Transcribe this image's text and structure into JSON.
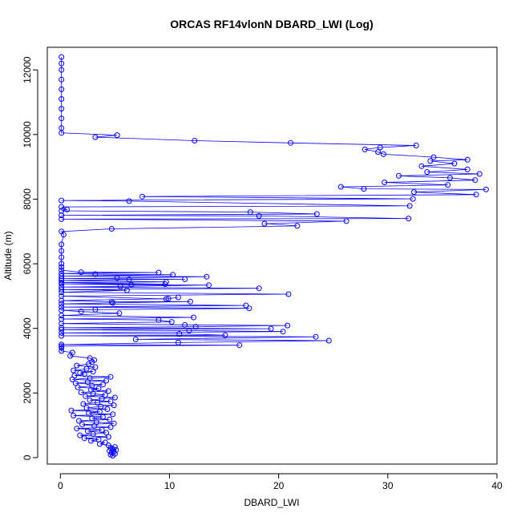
{
  "chart_data": {
    "type": "scatter",
    "title": "ORCAS RF14vlonN DBARD_LWI (Log)",
    "xlabel": "DBARD_LWI",
    "ylabel": "Altitude (m)",
    "xlim": [
      -1.2,
      40.0
    ],
    "ylim": [
      -200,
      12700
    ],
    "x_ticks": [
      0,
      10,
      20,
      30,
      40
    ],
    "y_ticks": [
      0,
      2000,
      4000,
      6000,
      8000,
      10000,
      12000
    ],
    "grid": false,
    "legend": "none",
    "series": [
      {
        "style": "points-connected-by-lines",
        "color": "#0000ff",
        "points": [
          [
            4.8,
            60
          ],
          [
            4.6,
            90
          ],
          [
            5.0,
            120
          ],
          [
            4.7,
            150
          ],
          [
            4.9,
            180
          ],
          [
            4.5,
            210
          ],
          [
            5.1,
            240
          ],
          [
            4.8,
            270
          ],
          [
            4.6,
            300
          ],
          [
            5.0,
            330
          ],
          [
            4.4,
            380
          ],
          [
            3.6,
            420
          ],
          [
            4.1,
            470
          ],
          [
            2.8,
            520
          ],
          [
            3.5,
            560
          ],
          [
            2.2,
            600
          ],
          [
            4.4,
            640
          ],
          [
            1.8,
            690
          ],
          [
            3.0,
            730
          ],
          [
            4.2,
            770
          ],
          [
            2.5,
            820
          ],
          [
            3.8,
            860
          ],
          [
            1.5,
            900
          ],
          [
            4.6,
            940
          ],
          [
            3.1,
            980
          ],
          [
            2.0,
            1020
          ],
          [
            4.9,
            1060
          ],
          [
            3.3,
            1100
          ],
          [
            1.7,
            1140
          ],
          [
            4.5,
            1180
          ],
          [
            2.9,
            1220
          ],
          [
            3.9,
            1260
          ],
          [
            1.2,
            1300
          ],
          [
            4.8,
            1340
          ],
          [
            2.6,
            1380
          ],
          [
            3.6,
            1420
          ],
          [
            1.0,
            1460
          ],
          [
            4.3,
            1500
          ],
          [
            2.4,
            1540
          ],
          [
            3.7,
            1580
          ],
          [
            4.9,
            1620
          ],
          [
            2.1,
            1660
          ],
          [
            3.4,
            1700
          ],
          [
            4.6,
            1740
          ],
          [
            2.7,
            1780
          ],
          [
            3.8,
            1820
          ],
          [
            5.0,
            1860
          ],
          [
            2.3,
            1900
          ],
          [
            4.1,
            1940
          ],
          [
            3.0,
            1980
          ],
          [
            1.9,
            2020
          ],
          [
            4.4,
            2060
          ],
          [
            2.8,
            2100
          ],
          [
            3.5,
            2140
          ],
          [
            1.6,
            2180
          ],
          [
            2.9,
            2220
          ],
          [
            3.9,
            2260
          ],
          [
            1.4,
            2300
          ],
          [
            2.5,
            2340
          ],
          [
            4.2,
            2380
          ],
          [
            1.1,
            2420
          ],
          [
            2.7,
            2460
          ],
          [
            4.6,
            2500
          ],
          [
            1.3,
            2540
          ],
          [
            2.2,
            2580
          ],
          [
            1.8,
            2620
          ],
          [
            3.0,
            2660
          ],
          [
            1.2,
            2700
          ],
          [
            2.4,
            2750
          ],
          [
            3.2,
            2800
          ],
          [
            1.5,
            2850
          ],
          [
            2.6,
            2900
          ],
          [
            2.9,
            2960
          ],
          [
            3.1,
            3020
          ],
          [
            2.7,
            3080
          ],
          [
            0.9,
            3150
          ],
          [
            1.1,
            3250
          ],
          [
            0.1,
            3300
          ],
          [
            0.1,
            3400
          ],
          [
            0.1,
            3450
          ],
          [
            16.4,
            3480
          ],
          [
            0.1,
            3500
          ],
          [
            10.8,
            3560
          ],
          [
            24.6,
            3620
          ],
          [
            6.9,
            3660
          ],
          [
            23.4,
            3740
          ],
          [
            0.1,
            3770
          ],
          [
            15.1,
            3790
          ],
          [
            10.9,
            3830
          ],
          [
            0.1,
            3860
          ],
          [
            20.4,
            3900
          ],
          [
            11.8,
            3930
          ],
          [
            0.1,
            3960
          ],
          [
            19.3,
            3990
          ],
          [
            0.1,
            4020
          ],
          [
            12.4,
            4050
          ],
          [
            20.8,
            4090
          ],
          [
            11.4,
            4110
          ],
          [
            0.1,
            4150
          ],
          [
            10.2,
            4200
          ],
          [
            9.0,
            4260
          ],
          [
            0.1,
            4290
          ],
          [
            12.2,
            4340
          ],
          [
            0.1,
            4400
          ],
          [
            5.4,
            4470
          ],
          [
            1.9,
            4520
          ],
          [
            0.1,
            4560
          ],
          [
            3.2,
            4580
          ],
          [
            17.3,
            4620
          ],
          [
            0.1,
            4660
          ],
          [
            17.0,
            4710
          ],
          [
            0.1,
            4760
          ],
          [
            4.8,
            4790
          ],
          [
            11.9,
            4830
          ],
          [
            4.7,
            4820
          ],
          [
            0.1,
            4860
          ],
          [
            9.9,
            4920
          ],
          [
            10.8,
            4960
          ],
          [
            9.7,
            4910
          ],
          [
            0.1,
            5000
          ],
          [
            20.9,
            5060
          ],
          [
            0.1,
            5120
          ],
          [
            6.1,
            5180
          ],
          [
            0.1,
            5200
          ],
          [
            18.2,
            5240
          ],
          [
            0.1,
            5280
          ],
          [
            5.5,
            5300
          ],
          [
            13.6,
            5340
          ],
          [
            6.5,
            5350
          ],
          [
            0.1,
            5380
          ],
          [
            9.6,
            5370
          ],
          [
            0.1,
            5420
          ],
          [
            9.7,
            5440
          ],
          [
            0.1,
            5480
          ],
          [
            6.3,
            5510
          ],
          [
            11.4,
            5520
          ],
          [
            0.1,
            5540
          ],
          [
            5.2,
            5560
          ],
          [
            13.4,
            5600
          ],
          [
            0.1,
            5620
          ],
          [
            10.3,
            5660
          ],
          [
            3.2,
            5680
          ],
          [
            0.1,
            5700
          ],
          [
            9.0,
            5730
          ],
          [
            1.9,
            5740
          ],
          [
            0.1,
            5800
          ],
          [
            0.1,
            5900
          ],
          [
            0.1,
            6000
          ],
          [
            0.1,
            6200
          ],
          [
            0.1,
            6400
          ],
          [
            0.1,
            6600
          ],
          [
            0.3,
            6900
          ],
          [
            0.1,
            7000
          ],
          [
            4.7,
            7080
          ],
          [
            21.7,
            7170
          ],
          [
            18.7,
            7240
          ],
          [
            26.2,
            7320
          ],
          [
            0.1,
            7380
          ],
          [
            31.9,
            7400
          ],
          [
            18.2,
            7480
          ],
          [
            0.1,
            7500
          ],
          [
            23.5,
            7540
          ],
          [
            17.4,
            7600
          ],
          [
            0.1,
            7640
          ],
          [
            0.6,
            7680
          ],
          [
            0.1,
            7760
          ],
          [
            32.0,
            7790
          ],
          [
            6.3,
            7940
          ],
          [
            0.1,
            7960
          ],
          [
            32.3,
            8010
          ],
          [
            7.5,
            8080
          ],
          [
            38.1,
            8140
          ],
          [
            32.4,
            8220
          ],
          [
            39.0,
            8300
          ],
          [
            27.8,
            8320
          ],
          [
            25.7,
            8380
          ],
          [
            35.5,
            8440
          ],
          [
            29.7,
            8520
          ],
          [
            38.0,
            8590
          ],
          [
            35.7,
            8660
          ],
          [
            31.0,
            8720
          ],
          [
            38.4,
            8780
          ],
          [
            33.6,
            8840
          ],
          [
            37.3,
            8920
          ],
          [
            33.1,
            9020
          ],
          [
            36.1,
            9100
          ],
          [
            33.9,
            9180
          ],
          [
            37.3,
            9220
          ],
          [
            34.2,
            9300
          ],
          [
            29.6,
            9390
          ],
          [
            29.1,
            9460
          ],
          [
            27.9,
            9540
          ],
          [
            29.3,
            9600
          ],
          [
            32.6,
            9660
          ],
          [
            21.1,
            9740
          ],
          [
            12.3,
            9810
          ],
          [
            3.2,
            9920
          ],
          [
            5.2,
            9980
          ],
          [
            0.1,
            10050
          ],
          [
            0.1,
            10200
          ],
          [
            0.1,
            10500
          ],
          [
            0.1,
            10800
          ],
          [
            0.1,
            11100
          ],
          [
            0.1,
            11400
          ],
          [
            0.1,
            11700
          ],
          [
            0.1,
            12000
          ],
          [
            0.1,
            12200
          ],
          [
            0.1,
            12400
          ]
        ]
      }
    ]
  }
}
